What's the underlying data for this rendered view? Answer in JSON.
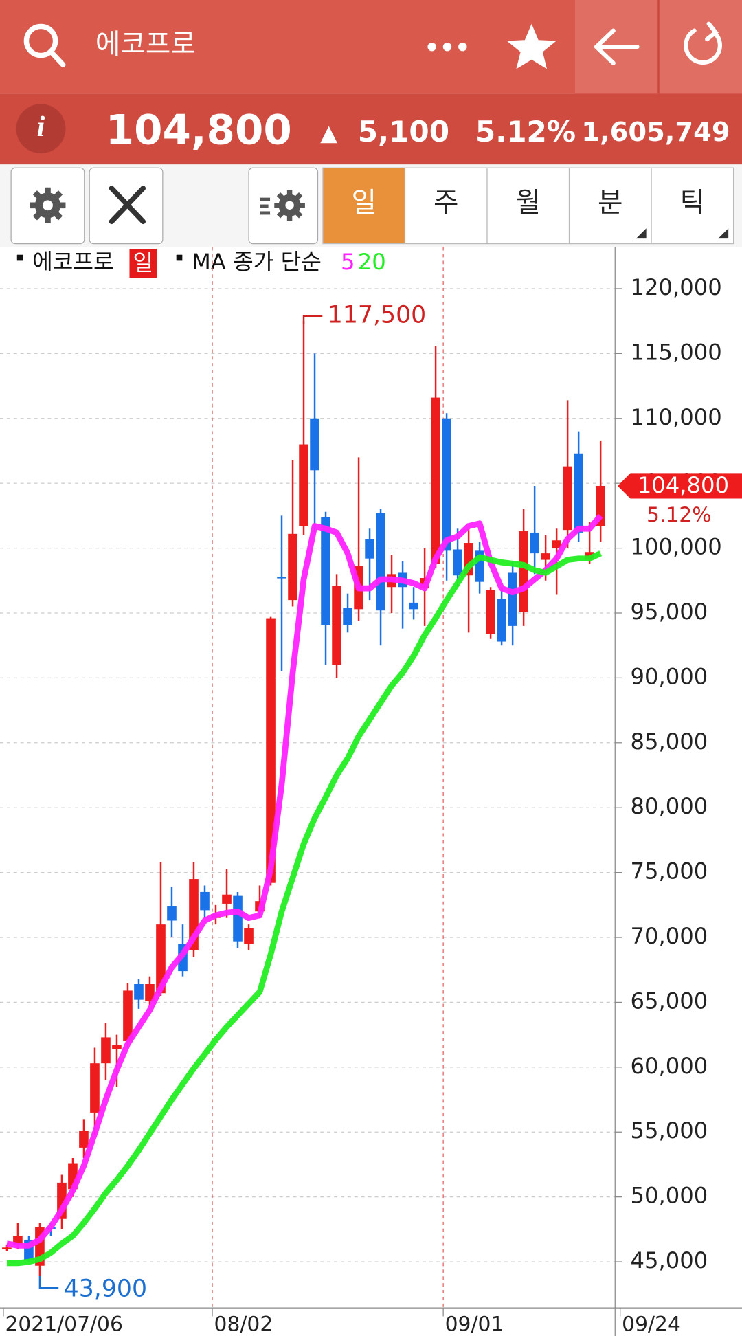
{
  "header": {
    "title": "에코프로"
  },
  "quote": {
    "price": "104,800",
    "change": "5,100",
    "change_pct": "5.12%",
    "volume": "1,605,749"
  },
  "toolbar": {
    "tabs": [
      "일",
      "주",
      "월",
      "분",
      "틱"
    ],
    "active": 0
  },
  "chart_data": {
    "type": "candlestick",
    "legend": {
      "name": "에코프로",
      "period": "일",
      "ma_label": "MA 종가 단순"
    },
    "categories": [
      "2021/07/06",
      null,
      null,
      null,
      null,
      null,
      null,
      null,
      null,
      null,
      null,
      null,
      null,
      null,
      null,
      null,
      null,
      null,
      null,
      "08/02",
      null,
      null,
      null,
      null,
      null,
      null,
      null,
      null,
      null,
      null,
      null,
      null,
      null,
      null,
      null,
      null,
      null,
      null,
      null,
      null,
      "09/01",
      null,
      null,
      null,
      null,
      null,
      null,
      null,
      null,
      null,
      null,
      null,
      null,
      null,
      "09/24"
    ],
    "open": [
      46000,
      46300,
      46700,
      44700,
      47700,
      48300,
      50600,
      53800,
      56500,
      60300,
      61400,
      62000,
      66400,
      65100,
      65700,
      72400,
      69500,
      69000,
      73500,
      71500,
      72600,
      73200,
      69500,
      72000,
      74200,
      97800,
      96000,
      101700,
      110000,
      102400,
      91000,
      95400,
      95300,
      100700,
      102700,
      97000,
      98100,
      95800,
      96900,
      98800,
      110000,
      99900,
      97900,
      99800,
      93400,
      96100,
      98100,
      95100,
      101200,
      99100,
      100000,
      101400,
      107300,
      99100,
      101700
    ],
    "high": [
      46300,
      48000,
      47000,
      48000,
      48000,
      51700,
      53000,
      56000,
      61500,
      63400,
      62500,
      66500,
      66800,
      67000,
      75800,
      73900,
      71000,
      75800,
      74000,
      72500,
      75300,
      73500,
      71000,
      74000,
      94700,
      102500,
      106800,
      117500,
      115000,
      102800,
      98000,
      96500,
      107000,
      101500,
      103000,
      99500,
      99000,
      97000,
      100000,
      115600,
      110400,
      101500,
      101500,
      100500,
      97000,
      97000,
      99000,
      103000,
      104800,
      101000,
      101500,
      111400,
      109000,
      102000,
      108300
    ],
    "low": [
      45800,
      46000,
      45000,
      43900,
      47000,
      47500,
      50000,
      53000,
      54800,
      59000,
      58500,
      61500,
      64500,
      64800,
      65500,
      70000,
      67000,
      68500,
      71500,
      71000,
      71500,
      69200,
      69000,
      71500,
      74000,
      90500,
      95500,
      101000,
      101200,
      91000,
      90000,
      93500,
      94400,
      96000,
      92500,
      95000,
      93800,
      94500,
      94000,
      98500,
      97500,
      97000,
      93500,
      96500,
      93000,
      92500,
      92500,
      94000,
      98000,
      97500,
      96400,
      100000,
      100500,
      98800,
      100500
    ],
    "close": [
      46100,
      47000,
      45100,
      47700,
      47500,
      51100,
      52600,
      55100,
      60300,
      62300,
      61700,
      65900,
      65200,
      66400,
      71000,
      71300,
      67400,
      74500,
      72100,
      71800,
      73300,
      69700,
      70700,
      72800,
      94600,
      97700,
      101100,
      108000,
      106000,
      94100,
      97100,
      94100,
      98600,
      99200,
      95200,
      98000,
      97000,
      95300,
      97700,
      111600,
      99800,
      97900,
      100400,
      97400,
      96800,
      92800,
      94000,
      101300,
      99600,
      99600,
      100600,
      106300,
      101200,
      99700,
      104800
    ],
    "up_color": "#ee1c1c",
    "down_color": "#1a72e8",
    "series": [
      {
        "name": "5",
        "color": "#ff22ff",
        "values": [
          46400,
          46250,
          46250,
          46700,
          47700,
          49000,
          50500,
          52400,
          54900,
          57500,
          59800,
          61800,
          63100,
          64400,
          66100,
          67700,
          68700,
          70000,
          71300,
          71700,
          71900,
          72000,
          71500,
          71700,
          75300,
          81800,
          90400,
          97600,
          101700,
          101500,
          101200,
          99600,
          96900,
          96900,
          97600,
          97600,
          97500,
          97300,
          96900,
          99200,
          100600,
          100900,
          101700,
          101900,
          98900,
          96900,
          96600,
          96900,
          97600,
          98300,
          99200,
          100700,
          101500,
          101500,
          102500
        ]
      },
      {
        "name": "20",
        "color": "#22ee22",
        "values": [
          44900,
          44900,
          45000,
          45200,
          45700,
          46400,
          47000,
          48000,
          49100,
          50300,
          51300,
          52400,
          53600,
          54900,
          56200,
          57500,
          58700,
          59900,
          61000,
          62100,
          63100,
          64000,
          64900,
          65800,
          68700,
          72000,
          74600,
          77200,
          79200,
          80800,
          82500,
          83800,
          85500,
          86800,
          88100,
          89400,
          90400,
          91700,
          93300,
          94600,
          96000,
          97300,
          98600,
          99300,
          99100,
          98900,
          98800,
          98700,
          98300,
          98100,
          98600,
          99100,
          99200,
          99200,
          99600
        ]
      }
    ],
    "ylim": [
      41450,
      123200
    ],
    "yticks": [
      {
        "value": 45000,
        "label": "45,000"
      },
      {
        "value": 50000,
        "label": "50,000"
      },
      {
        "value": 55000,
        "label": "55,000"
      },
      {
        "value": 60000,
        "label": "60,000"
      },
      {
        "value": 65000,
        "label": "65,000"
      },
      {
        "value": 70000,
        "label": "70,000"
      },
      {
        "value": 75000,
        "label": "75,000"
      },
      {
        "value": 80000,
        "label": "80,000"
      },
      {
        "value": 85000,
        "label": "85,000"
      },
      {
        "value": 90000,
        "label": "90,000"
      },
      {
        "value": 95000,
        "label": "95,000"
      },
      {
        "value": 100000,
        "label": "100,000"
      },
      {
        "value": 105000,
        "label": "105,000"
      },
      {
        "value": 110000,
        "label": "110,000"
      },
      {
        "value": 115000,
        "label": "115,000"
      },
      {
        "value": 120000,
        "label": "120,000"
      }
    ],
    "grid": true,
    "annotations": [
      {
        "value": 117500,
        "label": "117,500"
      },
      {
        "value": 43900,
        "label": "43,900"
      }
    ],
    "last": {
      "value": 104800,
      "label": "104,800",
      "change": "5.12%"
    }
  }
}
